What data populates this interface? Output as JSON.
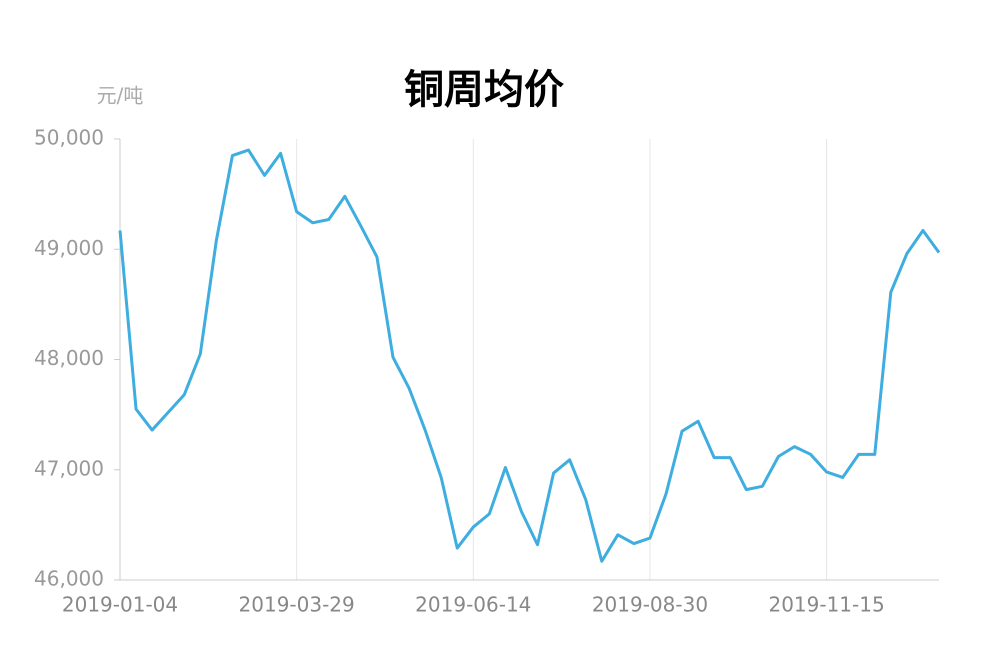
{
  "chart_data": {
    "type": "line",
    "title": "铜周均价",
    "y_label": "元/吨",
    "categories": [
      "2019-01-04",
      null,
      null,
      null,
      null,
      null,
      null,
      null,
      null,
      null,
      null,
      "2019-03-29",
      null,
      null,
      null,
      null,
      null,
      null,
      null,
      null,
      null,
      null,
      "2019-06-14",
      null,
      null,
      null,
      null,
      null,
      null,
      null,
      null,
      null,
      null,
      "2019-08-30",
      null,
      null,
      null,
      null,
      null,
      null,
      null,
      null,
      null,
      null,
      "2019-11-15",
      null,
      null,
      null,
      null,
      null,
      null,
      null
    ],
    "series": [
      {
        "name": "铜周均价",
        "color": "#3eaddf",
        "values": [
          49170,
          47550,
          47360,
          47520,
          47680,
          48050,
          49080,
          49850,
          49900,
          49670,
          49870,
          49340,
          49240,
          49270,
          49480,
          49210,
          48930,
          48020,
          47740,
          47360,
          46930,
          46290,
          46480,
          46600,
          47020,
          46620,
          46320,
          46970,
          47090,
          46730,
          46170,
          46410,
          46330,
          46380,
          46780,
          47350,
          47440,
          47110,
          47110,
          46820,
          46850,
          47120,
          47210,
          47140,
          46980,
          46930,
          47140,
          47140,
          48610,
          48960,
          49170,
          48970
        ]
      }
    ],
    "ylim": [
      46000,
      50000
    ],
    "yticks": [
      {
        "value": 46000,
        "label": "46,000"
      },
      {
        "value": 47000,
        "label": "47,000"
      },
      {
        "value": 48000,
        "label": "48,000"
      },
      {
        "value": 49000,
        "label": "49,000"
      },
      {
        "value": 50000,
        "label": "50,000"
      }
    ],
    "grid": true
  }
}
